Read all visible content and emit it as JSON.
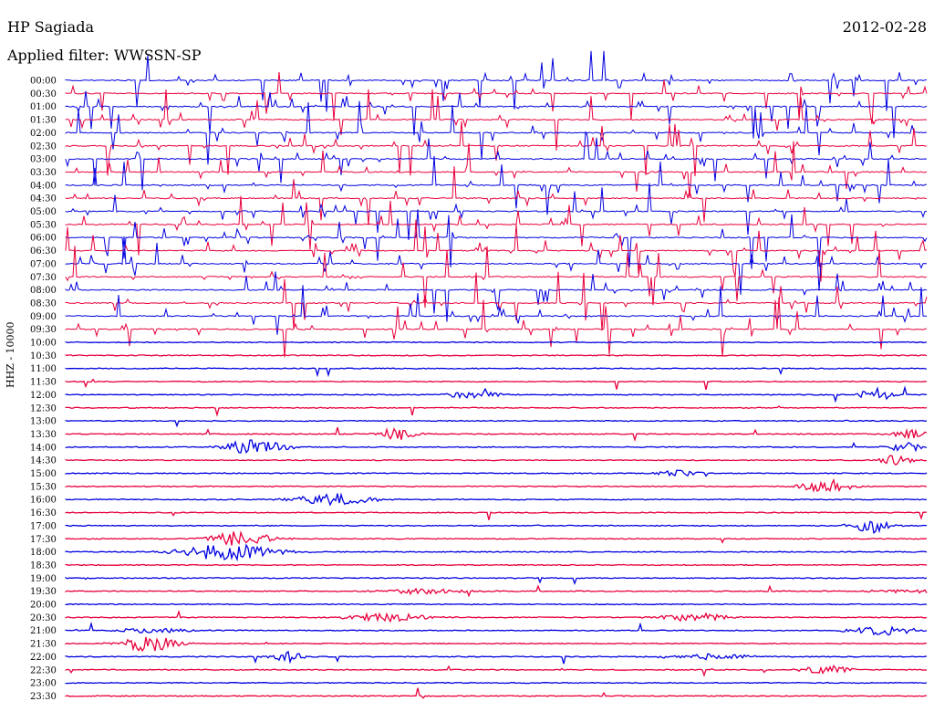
{
  "header": {
    "station": "HP Sagiada",
    "date": "2012-02-28",
    "filter": "Applied filter: WWSSN-SP"
  },
  "chart_data": {
    "type": "line",
    "title": "HP Sagiada",
    "ylabel": "HHZ - 10000",
    "colors": [
      "#0000e0",
      "#e8003c"
    ],
    "row_labels": [
      "00:00",
      "00:30",
      "01:00",
      "01:30",
      "02:00",
      "02:30",
      "03:00",
      "03:30",
      "04:00",
      "04:30",
      "05:00",
      "05:30",
      "06:00",
      "06:30",
      "07:00",
      "07:30",
      "08:00",
      "08:30",
      "09:00",
      "09:30",
      "10:00",
      "10:30",
      "11:00",
      "11:30",
      "12:00",
      "12:30",
      "13:00",
      "13:30",
      "14:00",
      "14:30",
      "15:00",
      "15:30",
      "16:00",
      "16:30",
      "17:00",
      "17:30",
      "18:00",
      "18:30",
      "19:00",
      "19:30",
      "20:00",
      "20:30",
      "21:00",
      "21:30",
      "22:00",
      "22:30",
      "23:00",
      "23:30"
    ],
    "noisy_rows_until": "10:00"
  }
}
